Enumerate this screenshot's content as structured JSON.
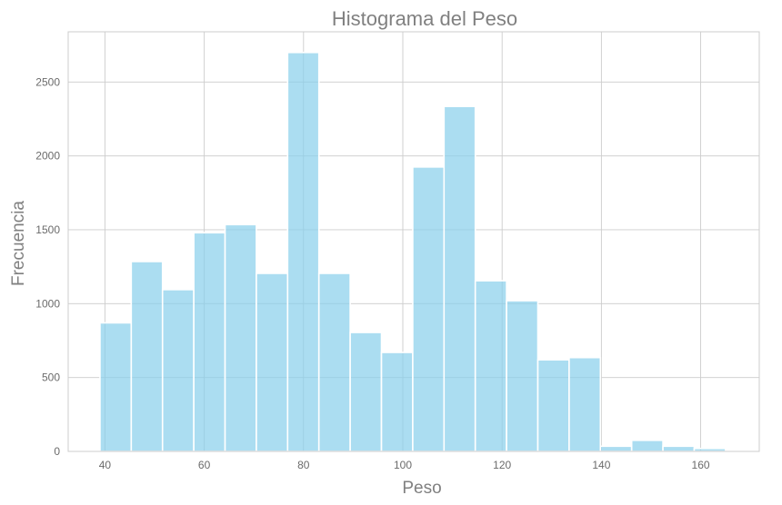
{
  "chart_data": {
    "type": "bar",
    "title": "Histograma del Peso",
    "xlabel": "Peso",
    "ylabel": "Frecuencia",
    "bin_start": 39,
    "bin_width": 6.3,
    "values": [
      870,
      1285,
      1095,
      1480,
      1535,
      1205,
      2700,
      1205,
      805,
      670,
      1925,
      2335,
      1155,
      1020,
      620,
      635,
      35,
      75,
      35,
      20
    ],
    "xlim": [
      32.6,
      171.8
    ],
    "ylim": [
      0,
      2840
    ],
    "xticks": [
      40,
      60,
      80,
      100,
      120,
      140,
      160
    ],
    "yticks": [
      0,
      500,
      1000,
      1500,
      2000,
      2500
    ],
    "bar_color": "#87ceeb",
    "grid": true,
    "legend": "none"
  }
}
